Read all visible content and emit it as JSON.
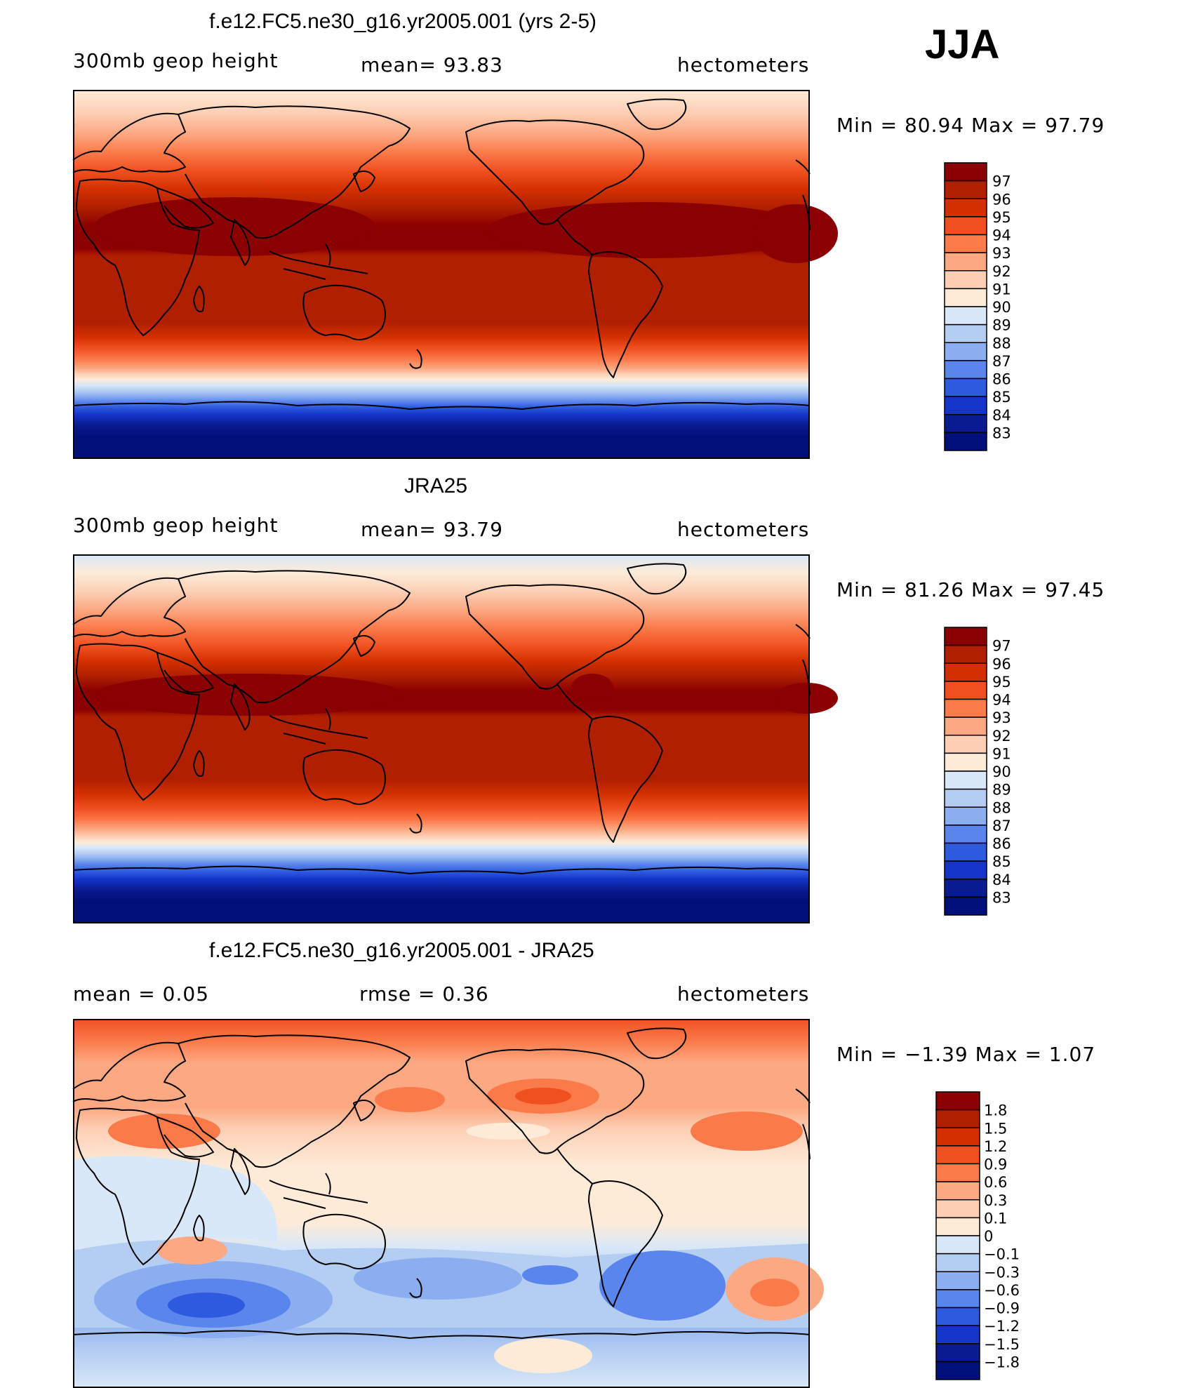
{
  "season": "JJA",
  "panels": [
    {
      "id": "model",
      "title": "f.e12.FC5.ne30_g16.yr2005.001 (yrs 2-5)",
      "left_label": "300mb  geop  height",
      "mean_label": "mean=   93.83",
      "units": "hectometers",
      "minmax": "Min  =    80.94  Max  =    97.79",
      "colorbar_labels": [
        "97",
        "96",
        "95",
        "94",
        "93",
        "92",
        "91",
        "90",
        "89",
        "88",
        "87",
        "86",
        "85",
        "84",
        "83"
      ],
      "colors": [
        "#8b0000",
        "#b01f00",
        "#d33000",
        "#f05020",
        "#fb7a4a",
        "#fca882",
        "#fdd0b5",
        "#fdebd8",
        "#d8e8f8",
        "#b4cdf2",
        "#8aaef0",
        "#5a85ec",
        "#2e5ae0",
        "#1535c8",
        "#0a1a90",
        "#00107a"
      ]
    },
    {
      "id": "obs",
      "title": "JRA25",
      "left_label": "300mb  geop  height",
      "mean_label": "mean=   93.79",
      "units": "hectometers",
      "minmax": "Min  =    81.26  Max  =    97.45",
      "colorbar_labels": [
        "97",
        "96",
        "95",
        "94",
        "93",
        "92",
        "91",
        "90",
        "89",
        "88",
        "87",
        "86",
        "85",
        "84",
        "83"
      ],
      "colors": [
        "#8b0000",
        "#b01f00",
        "#d33000",
        "#f05020",
        "#fb7a4a",
        "#fca882",
        "#fdd0b5",
        "#fdebd8",
        "#d8e8f8",
        "#b4cdf2",
        "#8aaef0",
        "#5a85ec",
        "#2e5ae0",
        "#1535c8",
        "#0a1a90",
        "#00107a"
      ]
    },
    {
      "id": "diff",
      "title": "f.e12.FC5.ne30_g16.yr2005.001 - JRA25",
      "left_label": "mean  =      0.05",
      "mean_label": "rmse  =      0.36",
      "units": "hectometers",
      "minmax": "Min  =    −1.39  Max  =      1.07",
      "colorbar_labels": [
        "1.8",
        "1.5",
        "1.2",
        "0.9",
        "0.6",
        "0.3",
        "0.1",
        "0",
        "−0.1",
        "−0.3",
        "−0.6",
        "−0.9",
        "−1.2",
        "−1.5",
        "−1.8"
      ],
      "colors": [
        "#8b0000",
        "#b01f00",
        "#d33000",
        "#f05020",
        "#fb7a4a",
        "#fca882",
        "#fdd0b5",
        "#fdebd8",
        "#d8e8f8",
        "#b4cdf2",
        "#8aaef0",
        "#5a85ec",
        "#2e5ae0",
        "#1535c8",
        "#0a1a90",
        "#00107a"
      ]
    }
  ]
}
